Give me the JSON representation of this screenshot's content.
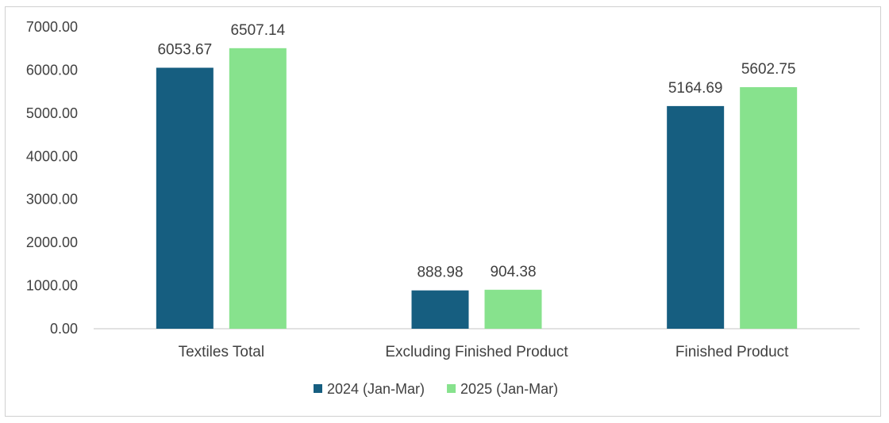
{
  "chart_data": {
    "type": "bar",
    "categories": [
      "Textiles Total",
      "Excluding Finished Product",
      "Finished Product"
    ],
    "series": [
      {
        "name": "2024 (Jan-Mar)",
        "values": [
          6053.67,
          888.98,
          5164.69
        ],
        "labels": [
          "6053.67",
          "888.98",
          "5164.69"
        ],
        "color": "#165e80"
      },
      {
        "name": "2025 (Jan-Mar)",
        "values": [
          6507.14,
          904.38,
          5602.75
        ],
        "labels": [
          "6507.14",
          "904.38",
          "5602.75"
        ],
        "color": "#87e28d"
      }
    ],
    "yticks": [
      "0.00",
      "1000.00",
      "2000.00",
      "3000.00",
      "4000.00",
      "5000.00",
      "6000.00",
      "7000.00"
    ],
    "ylim": [
      0,
      7000
    ],
    "grid": false,
    "legend": "bottom"
  }
}
